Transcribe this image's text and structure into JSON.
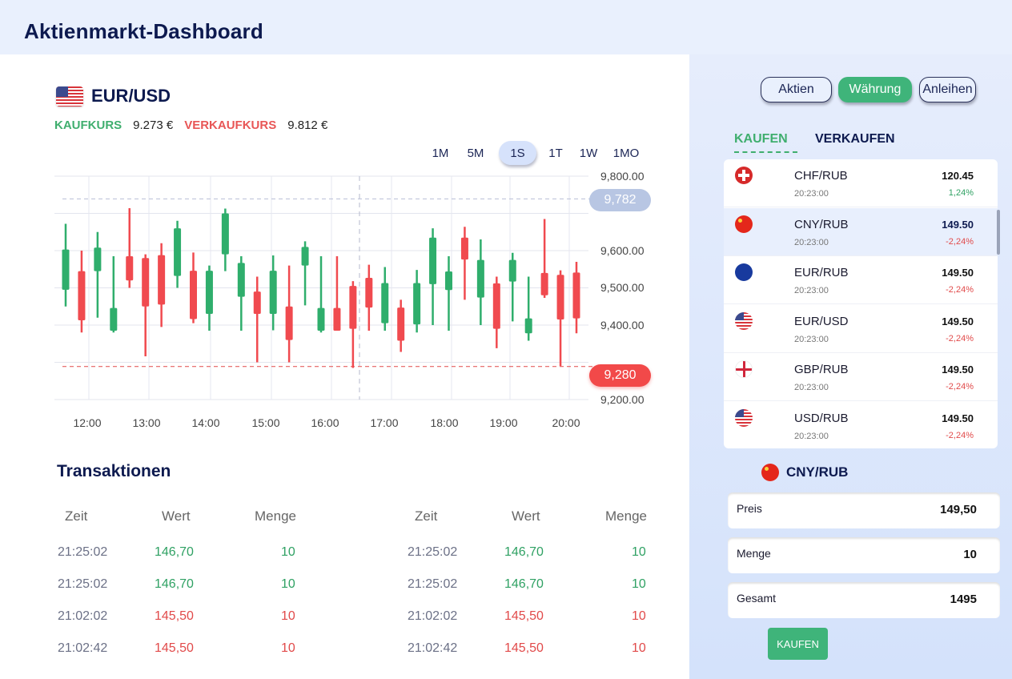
{
  "header": {
    "title": "Aktienmarkt-Dashboard"
  },
  "instrument": {
    "flag_icon": "us-flag-icon",
    "name": "EUR/USD",
    "buy_label": "KAUFKURS",
    "buy_value": "9.273 €",
    "sell_label": "VERKAUFKURS",
    "sell_value": "9.812 €"
  },
  "timeframes": [
    {
      "label": "1M",
      "active": false
    },
    {
      "label": "5M",
      "active": false
    },
    {
      "label": "1S",
      "active": true
    },
    {
      "label": "1T",
      "active": false
    },
    {
      "label": "1W",
      "active": false
    },
    {
      "label": "1MO",
      "active": false
    }
  ],
  "chart_data": {
    "type": "candlestick",
    "title": "EUR/USD",
    "xlabel": "",
    "ylabel": "",
    "ylim": [
      9200,
      9800
    ],
    "y_ticks": [
      "9,800.00",
      "9,700.00",
      "9,600.00",
      "9,500.00",
      "9,400.00",
      "9,300.00",
      "9,200.00"
    ],
    "x_ticks": [
      "12:00",
      "13:00",
      "14:00",
      "15:00",
      "16:00",
      "17:00",
      "18:00",
      "19:00",
      "20:00"
    ],
    "grid": true,
    "colors": {
      "up": "#2fae6c",
      "down": "#f04a4f"
    },
    "reference_lines": [
      {
        "label": "9,782",
        "value": 9782,
        "color": "#b8c6e3",
        "style": "dashed"
      },
      {
        "label": "9,280",
        "value": 9280,
        "color": "#e14a4a",
        "style": "dashed"
      }
    ],
    "crosshair_x_index": 18,
    "candles": [
      {
        "open": 9495,
        "high": 9672,
        "low": 9450,
        "close": 9603,
        "dir": "up"
      },
      {
        "open": 9545,
        "high": 9600,
        "low": 9380,
        "close": 9413,
        "dir": "down"
      },
      {
        "open": 9545,
        "high": 9650,
        "low": 9420,
        "close": 9608,
        "dir": "up"
      },
      {
        "open": 9385,
        "high": 9585,
        "low": 9380,
        "close": 9446,
        "dir": "up"
      },
      {
        "open": 9585,
        "high": 9714,
        "low": 9500,
        "close": 9520,
        "dir": "down"
      },
      {
        "open": 9580,
        "high": 9590,
        "low": 9316,
        "close": 9450,
        "dir": "down"
      },
      {
        "open": 9588,
        "high": 9620,
        "low": 9395,
        "close": 9455,
        "dir": "down"
      },
      {
        "open": 9532,
        "high": 9680,
        "low": 9500,
        "close": 9660,
        "dir": "up"
      },
      {
        "open": 9546,
        "high": 9595,
        "low": 9405,
        "close": 9416,
        "dir": "down"
      },
      {
        "open": 9430,
        "high": 9560,
        "low": 9385,
        "close": 9546,
        "dir": "up"
      },
      {
        "open": 9590,
        "high": 9713,
        "low": 9545,
        "close": 9700,
        "dir": "up"
      },
      {
        "open": 9476,
        "high": 9585,
        "low": 9385,
        "close": 9567,
        "dir": "up"
      },
      {
        "open": 9490,
        "high": 9530,
        "low": 9300,
        "close": 9430,
        "dir": "down"
      },
      {
        "open": 9430,
        "high": 9587,
        "low": 9386,
        "close": 9546,
        "dir": "up"
      },
      {
        "open": 9450,
        "high": 9560,
        "low": 9300,
        "close": 9360,
        "dir": "down"
      },
      {
        "open": 9560,
        "high": 9625,
        "low": 9453,
        "close": 9610,
        "dir": "up"
      },
      {
        "open": 9385,
        "high": 9585,
        "low": 9380,
        "close": 9446,
        "dir": "up"
      },
      {
        "open": 9446,
        "high": 9585,
        "low": 9385,
        "close": 9385,
        "dir": "down"
      },
      {
        "open": 9505,
        "high": 9518,
        "low": 9285,
        "close": 9390,
        "dir": "down"
      },
      {
        "open": 9527,
        "high": 9562,
        "low": 9385,
        "close": 9447,
        "dir": "down"
      },
      {
        "open": 9405,
        "high": 9556,
        "low": 9385,
        "close": 9513,
        "dir": "up"
      },
      {
        "open": 9447,
        "high": 9468,
        "low": 9328,
        "close": 9358,
        "dir": "down"
      },
      {
        "open": 9402,
        "high": 9548,
        "low": 9380,
        "close": 9513,
        "dir": "up"
      },
      {
        "open": 9510,
        "high": 9660,
        "low": 9400,
        "close": 9635,
        "dir": "up"
      },
      {
        "open": 9494,
        "high": 9585,
        "low": 9385,
        "close": 9544,
        "dir": "up"
      },
      {
        "open": 9635,
        "high": 9664,
        "low": 9468,
        "close": 9576,
        "dir": "down"
      },
      {
        "open": 9474,
        "high": 9630,
        "low": 9400,
        "close": 9575,
        "dir": "up"
      },
      {
        "open": 9512,
        "high": 9530,
        "low": 9338,
        "close": 9390,
        "dir": "down"
      },
      {
        "open": 9517,
        "high": 9594,
        "low": 9410,
        "close": 9575,
        "dir": "up"
      },
      {
        "open": 9378,
        "high": 9530,
        "low": 9358,
        "close": 9418,
        "dir": "up"
      },
      {
        "open": 9540,
        "high": 9685,
        "low": 9473,
        "close": 9480,
        "dir": "down"
      },
      {
        "open": 9535,
        "high": 9547,
        "low": 9290,
        "close": 9415,
        "dir": "down"
      },
      {
        "open": 9541,
        "high": 9570,
        "low": 9378,
        "close": 9418,
        "dir": "down"
      }
    ]
  },
  "transactions": {
    "title": "Transaktionen",
    "columns": [
      "Zeit",
      "Wert",
      "Menge"
    ],
    "left": [
      {
        "time": "21:25:02",
        "value": "146,70",
        "qty": "10",
        "side": "buy"
      },
      {
        "time": "21:25:02",
        "value": "146,70",
        "qty": "10",
        "side": "buy"
      },
      {
        "time": "21:02:02",
        "value": "145,50",
        "qty": "10",
        "side": "sell"
      },
      {
        "time": "21:02:42",
        "value": "145,50",
        "qty": "10",
        "side": "sell"
      }
    ],
    "right": [
      {
        "time": "21:25:02",
        "value": "146,70",
        "qty": "10",
        "side": "buy"
      },
      {
        "time": "21:25:02",
        "value": "146,70",
        "qty": "10",
        "side": "buy"
      },
      {
        "time": "21:02:02",
        "value": "145,50",
        "qty": "10",
        "side": "sell"
      },
      {
        "time": "21:02:42",
        "value": "145,50",
        "qty": "10",
        "side": "sell"
      }
    ]
  },
  "sidebar": {
    "categories": [
      {
        "label": "Aktien",
        "active": false
      },
      {
        "label": "Währung",
        "active": true
      },
      {
        "label": "Anleihen",
        "active": false
      }
    ],
    "tabs": [
      {
        "label": "KAUFEN",
        "active": true
      },
      {
        "label": "VERKAUFEN",
        "active": false
      }
    ],
    "pairs": [
      {
        "flag": "swiss-flag-icon",
        "pair": "CHF/RUB",
        "time": "20:23:00",
        "price": "120.45",
        "change": "1,24%",
        "trend": "up",
        "selected": false
      },
      {
        "flag": "china-flag-icon",
        "pair": "CNY/RUB",
        "time": "20:23:00",
        "price": "149.50",
        "change": "-2,24%",
        "trend": "down",
        "selected": true
      },
      {
        "flag": "eu-flag-icon",
        "pair": "EUR/RUB",
        "time": "20:23:00",
        "price": "149.50",
        "change": "-2,24%",
        "trend": "down",
        "selected": false
      },
      {
        "flag": "us-flag-icon",
        "pair": "EUR/USD",
        "time": "20:23:00",
        "price": "149.50",
        "change": "-2,24%",
        "trend": "down",
        "selected": false
      },
      {
        "flag": "england-flag-icon",
        "pair": "GBP/RUB",
        "time": "20:23:00",
        "price": "149.50",
        "change": "-2,24%",
        "trend": "down",
        "selected": false
      },
      {
        "flag": "us-flag-icon",
        "pair": "USD/RUB",
        "time": "20:23:00",
        "price": "149.50",
        "change": "-2,24%",
        "trend": "down",
        "selected": false
      }
    ],
    "order": {
      "flag": "china-flag-icon",
      "pair": "CNY/RUB",
      "fields": [
        {
          "label": "Preis",
          "value": "149,50"
        },
        {
          "label": "Menge",
          "value": "10"
        },
        {
          "label": "Gesamt",
          "value": "1495"
        }
      ],
      "submit_label": "KAUFEN"
    }
  },
  "colors": {
    "accent_green": "#3fb47a",
    "buy_green": "#2fa163",
    "sell_red": "#e14a4a",
    "navy": "#0d1a4f",
    "header_bg": "#e9f0fd",
    "sidebar_bg": "#dbe6fc"
  }
}
